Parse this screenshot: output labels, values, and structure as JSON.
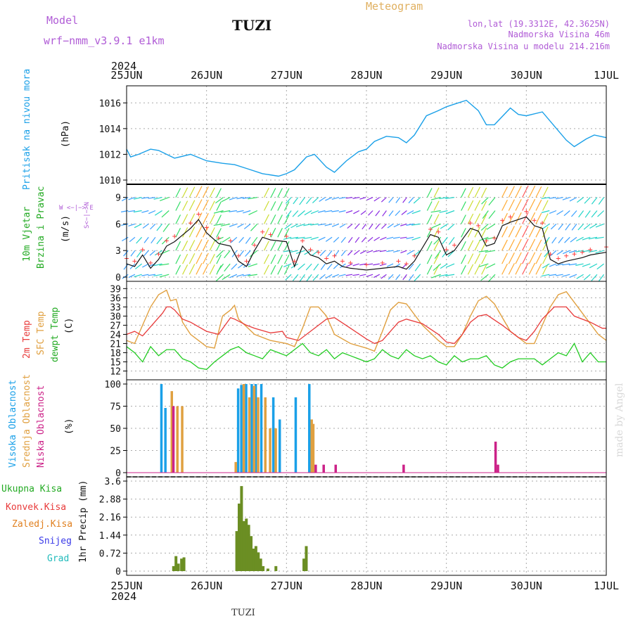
{
  "header": {
    "model_label": "Model",
    "model_name": "wrf−nmm_v3.9.1 e1km",
    "station": "TUZI",
    "product": "Meteogram",
    "coords": "lon,lat (19.3312E, 42.3625N)",
    "elevation": "Nadmorska Visina 46m",
    "model_elevation": "Nadmorska Visina u modelu 214.216m",
    "year": "2024",
    "bottom_label": "TUZI",
    "credit": "made by Angel"
  },
  "colors": {
    "pressure": "#1aa0e8",
    "t2m": "#e83a3a",
    "sfc": "#e0a040",
    "dewpt": "#22cc22",
    "high_cloud": "#1aa0e8",
    "mid_cloud": "#e0a040",
    "low_cloud": "#cc2288",
    "rain": "#6b8e23",
    "purple": "#b05cd6"
  },
  "panels": {
    "pressure": {
      "label": "Pritisak na nivou mora",
      "unit": "(hPa)"
    },
    "wind": {
      "label1": "10m Vjetar",
      "label2": "Brzina i Pravac",
      "unit": "(m/s)",
      "compass": "W <−|−> E",
      "compass2": "S<−|−>N"
    },
    "temp": {
      "label1": "2m Temp",
      "label2": "SFC Temp",
      "label3": "dewpt Temp",
      "unit": "(C)"
    },
    "cloud": {
      "label1": "Visoka Oblacnost",
      "label2": "Srednja Oblacnost",
      "label3": "Niska Oblacnost",
      "unit": "(%)"
    },
    "precip": {
      "unit": "1hr Precip (mm)",
      "legend": [
        "Ukupna Kisa",
        "Konvek.Kisa",
        "Zaledj.Kisa",
        "Snijeg",
        "Grad"
      ],
      "legend_colors": [
        "#22aa22",
        "#e83a3a",
        "#e08020",
        "#3a3ae8",
        "#22bbbb"
      ]
    }
  },
  "chart_data": [
    {
      "type": "line",
      "title": "Pritisak na nivou mora",
      "ylabel": "(hPa)",
      "x_categories": [
        "25JUN",
        "26JUN",
        "27JUN",
        "28JUN",
        "29JUN",
        "30JUN",
        "1JUL"
      ],
      "ylim": [
        1010,
        1017
      ],
      "yticks": [
        1010,
        1012,
        1014,
        1016
      ],
      "series": [
        {
          "x_days": [
            0,
            0.05,
            0.15,
            0.3,
            0.4,
            0.6,
            0.8,
            1.0,
            1.2,
            1.35,
            1.5,
            1.7,
            1.9,
            2.0,
            2.1,
            2.25,
            2.35,
            2.5,
            2.6,
            2.75,
            2.9,
            3.0,
            3.1,
            3.25,
            3.4,
            3.5,
            3.6,
            3.75,
            3.9,
            4.0,
            4.1,
            4.25,
            4.4,
            4.5,
            4.6,
            4.8,
            4.9,
            5.0,
            5.2,
            5.35,
            5.5,
            5.6,
            5.75,
            5.85,
            6.0
          ],
          "values": [
            1012.4,
            1011.8,
            1012.0,
            1012.4,
            1012.3,
            1011.7,
            1012.0,
            1011.5,
            1011.3,
            1011.2,
            1010.9,
            1010.5,
            1010.3,
            1010.5,
            1010.8,
            1011.8,
            1012.0,
            1011.0,
            1010.6,
            1011.5,
            1012.2,
            1012.4,
            1013.0,
            1013.4,
            1013.3,
            1012.9,
            1013.5,
            1015.0,
            1015.4,
            1015.7,
            1015.9,
            1016.2,
            1015.4,
            1014.3,
            1014.3,
            1015.6,
            1015.1,
            1015.0,
            1015.3,
            1014.2,
            1013.1,
            1012.6,
            1013.2,
            1013.5,
            1013.3
          ]
        }
      ]
    },
    {
      "type": "line",
      "title": "10m Vjetar Brzina i Pravac",
      "ylabel": "(m/s)",
      "ylim": [
        0,
        10
      ],
      "yticks": [
        0,
        3,
        6,
        9
      ],
      "series": [
        {
          "name": "speed",
          "x_days": [
            0,
            0.1,
            0.2,
            0.3,
            0.4,
            0.5,
            0.6,
            0.8,
            0.9,
            1.0,
            1.15,
            1.3,
            1.4,
            1.5,
            1.6,
            1.7,
            1.8,
            2.0,
            2.1,
            2.2,
            2.3,
            2.4,
            2.5,
            2.6,
            2.7,
            2.8,
            3.0,
            3.2,
            3.4,
            3.5,
            3.6,
            3.8,
            3.9,
            4.0,
            4.1,
            4.3,
            4.4,
            4.5,
            4.6,
            4.7,
            4.8,
            5.0,
            5.1,
            5.2,
            5.3,
            5.4,
            5.5,
            5.6,
            5.7,
            5.8,
            6.0
          ],
          "values": [
            1.5,
            1.2,
            2.5,
            1.0,
            2.0,
            3.5,
            4.0,
            5.5,
            6.5,
            5.0,
            3.8,
            3.5,
            1.8,
            1.2,
            3.0,
            4.5,
            4.2,
            4.0,
            1.2,
            3.5,
            2.5,
            2.2,
            1.5,
            1.8,
            1.2,
            1.0,
            0.8,
            1.0,
            1.2,
            0.9,
            1.8,
            4.8,
            4.5,
            2.5,
            3.0,
            5.5,
            5.2,
            3.5,
            3.8,
            5.8,
            6.2,
            6.8,
            5.8,
            5.5,
            2.0,
            1.5,
            1.8,
            2.0,
            2.2,
            2.5,
            2.8
          ]
        }
      ]
    },
    {
      "type": "line",
      "title": "2m Temp / SFC Temp / dewpt Temp",
      "ylabel": "(C)",
      "ylim": [
        10.5,
        40
      ],
      "yticks": [
        12,
        15,
        18,
        21,
        24,
        27,
        30,
        33,
        36,
        39
      ],
      "series": [
        {
          "name": "2m Temp",
          "x_days": [
            0,
            0.1,
            0.2,
            0.35,
            0.45,
            0.5,
            0.55,
            0.6,
            0.7,
            0.8,
            1.0,
            1.15,
            1.3,
            1.35,
            1.5,
            1.6,
            1.8,
            1.95,
            2.0,
            2.15,
            2.3,
            2.5,
            2.6,
            2.8,
            3.0,
            3.1,
            3.2,
            3.3,
            3.4,
            3.5,
            3.7,
            3.9,
            4.0,
            4.1,
            4.2,
            4.3,
            4.4,
            4.5,
            4.7,
            4.9,
            5.0,
            5.1,
            5.2,
            5.35,
            5.5,
            5.6,
            5.8,
            5.95,
            6.0
          ],
          "values": [
            24,
            25,
            23.5,
            28,
            31,
            33,
            33,
            32,
            29,
            28,
            25,
            24,
            29.5,
            29,
            27,
            26,
            24.5,
            25,
            23,
            22,
            25,
            29,
            29.5,
            26,
            22.5,
            21,
            22,
            25,
            28,
            29,
            27.5,
            24,
            21.5,
            21,
            24,
            28,
            30,
            30.5,
            27,
            23,
            22,
            25,
            29,
            33,
            33,
            30,
            28,
            26,
            26
          ]
        },
        {
          "name": "SFC Temp",
          "x_days": [
            0,
            0.1,
            0.2,
            0.3,
            0.4,
            0.5,
            0.55,
            0.62,
            0.7,
            0.8,
            1.0,
            1.1,
            1.2,
            1.3,
            1.35,
            1.4,
            1.6,
            1.8,
            2.0,
            2.1,
            2.2,
            2.3,
            2.4,
            2.5,
            2.6,
            2.8,
            3.0,
            3.1,
            3.2,
            3.3,
            3.4,
            3.5,
            3.7,
            3.9,
            4.0,
            4.1,
            4.2,
            4.3,
            4.4,
            4.5,
            4.6,
            4.8,
            5.0,
            5.1,
            5.2,
            5.3,
            5.4,
            5.5,
            5.7,
            5.9,
            6.0
          ],
          "values": [
            22,
            21,
            27,
            33,
            37,
            38.5,
            35,
            35.5,
            28,
            24,
            20,
            19.5,
            30,
            32,
            33.5,
            29,
            24,
            22,
            21,
            20,
            26,
            33,
            33,
            30,
            24,
            21,
            19.5,
            18.5,
            25,
            32,
            34.5,
            34,
            27,
            22,
            20,
            20,
            24,
            30,
            35,
            36.5,
            34,
            25,
            21,
            21,
            27,
            33,
            37,
            38,
            31,
            24,
            22
          ]
        },
        {
          "name": "dewpt Temp",
          "x_days": [
            0,
            0.1,
            0.2,
            0.3,
            0.4,
            0.5,
            0.6,
            0.7,
            0.8,
            0.9,
            1.0,
            1.1,
            1.2,
            1.3,
            1.4,
            1.5,
            1.6,
            1.7,
            1.8,
            1.9,
            2.0,
            2.1,
            2.2,
            2.3,
            2.4,
            2.5,
            2.6,
            2.7,
            2.8,
            2.9,
            3.0,
            3.1,
            3.2,
            3.3,
            3.4,
            3.5,
            3.6,
            3.7,
            3.8,
            3.9,
            4.0,
            4.1,
            4.2,
            4.3,
            4.4,
            4.5,
            4.6,
            4.7,
            4.8,
            4.9,
            5.0,
            5.1,
            5.2,
            5.3,
            5.4,
            5.5,
            5.6,
            5.7,
            5.8,
            5.9,
            6.0
          ],
          "values": [
            20,
            18,
            15,
            20,
            17,
            19,
            19,
            16,
            15,
            13,
            12.5,
            15,
            17,
            19,
            20,
            18,
            17,
            16,
            19,
            18,
            17,
            19,
            21,
            18,
            17,
            19,
            16,
            18,
            17,
            16,
            15,
            16,
            19,
            17,
            16,
            19,
            17,
            16,
            17,
            15,
            14,
            17,
            15,
            16,
            16,
            17,
            14,
            13,
            15,
            16,
            16,
            16,
            14,
            16,
            18,
            17,
            21,
            15,
            18,
            15,
            15
          ]
        }
      ]
    },
    {
      "type": "bar",
      "title": "Visoka / Srednja / Niska Oblacnost",
      "ylabel": "(%)",
      "ylim": [
        0,
        100
      ],
      "yticks": [
        0,
        25,
        50,
        75,
        100
      ],
      "series": [
        {
          "name": "Visoka Oblacnost",
          "x_days": [
            0.42,
            0.47,
            1.38,
            1.42,
            1.48,
            1.55,
            1.6,
            1.67,
            1.82,
            1.9,
            2.1,
            2.27
          ],
          "values": [
            100,
            73,
            95,
            99,
            100,
            100,
            100,
            100,
            85,
            60,
            85,
            100
          ]
        },
        {
          "name": "Srednja Oblacnost",
          "x_days": [
            0.55,
            0.62,
            0.68,
            1.35,
            1.45,
            1.52,
            1.58,
            1.63,
            1.72,
            1.78,
            1.85,
            2.3,
            2.32
          ],
          "values": [
            92,
            75,
            75,
            12,
            100,
            85,
            98,
            85,
            85,
            50,
            50,
            60,
            55
          ]
        },
        {
          "name": "Niska Oblacnost",
          "x_days": [
            0.57,
            2.35,
            2.45,
            2.6,
            3.45,
            4.6,
            4.63
          ],
          "values": [
            75,
            9,
            9,
            9,
            9,
            35,
            9
          ]
        }
      ]
    },
    {
      "type": "bar",
      "title": "1hr Precip",
      "ylabel": "1hr Precip (mm)",
      "ylim": [
        0,
        3.6
      ],
      "yticks": [
        0,
        0.72,
        1.44,
        2.16,
        2.88,
        3.6
      ],
      "series": [
        {
          "name": "Ukupna Kisa",
          "x_days": [
            0.57,
            0.6,
            0.63,
            0.67,
            0.7,
            1.36,
            1.39,
            1.42,
            1.45,
            1.48,
            1.51,
            1.54,
            1.57,
            1.6,
            1.63,
            1.66,
            1.69,
            1.75,
            1.85,
            2.2,
            2.23
          ],
          "values": [
            0.2,
            0.6,
            0.3,
            0.5,
            0.55,
            1.6,
            2.7,
            3.4,
            2.0,
            2.1,
            1.85,
            1.4,
            0.9,
            1.0,
            0.75,
            0.5,
            0.2,
            0.1,
            0.2,
            0.5,
            1.0
          ]
        }
      ]
    }
  ]
}
